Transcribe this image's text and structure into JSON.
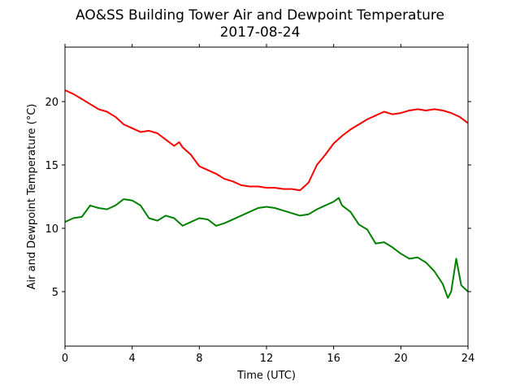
{
  "chart_data": {
    "type": "line",
    "title": "AO&SS Building Tower Air and Dewpoint Temperature",
    "subtitle": "2017-08-24",
    "xlabel": "Time (UTC)",
    "ylabel": "Air and Dewpoint Temperature (°C)",
    "xlim": [
      0,
      24
    ],
    "ylim": [
      0.7,
      24.3
    ],
    "x_ticks": [
      0,
      4,
      8,
      12,
      16,
      20,
      24
    ],
    "y_ticks": [
      5,
      10,
      15,
      20
    ],
    "grid": false,
    "series": [
      {
        "color": "#ff0000",
        "x": [
          0,
          0.5,
          1,
          1.5,
          2,
          2.5,
          3,
          3.5,
          4,
          4.5,
          5,
          5.5,
          6,
          6.5,
          6.8,
          7,
          7.5,
          8,
          8.5,
          9,
          9.5,
          10,
          10.5,
          11,
          11.5,
          12,
          12.5,
          13,
          13.5,
          14,
          14.5,
          15,
          15.5,
          16,
          16.5,
          17,
          17.5,
          18,
          18.5,
          19,
          19.5,
          20,
          20.5,
          21,
          21.5,
          22,
          22.5,
          23,
          23.5,
          24
        ],
        "y": [
          20.9,
          20.6,
          20.2,
          19.8,
          19.4,
          19.2,
          18.8,
          18.2,
          17.9,
          17.6,
          17.7,
          17.5,
          17.0,
          16.5,
          16.8,
          16.4,
          15.8,
          14.9,
          14.6,
          14.3,
          13.9,
          13.7,
          13.4,
          13.3,
          13.3,
          13.2,
          13.2,
          13.1,
          13.1,
          13.0,
          13.6,
          15.0,
          15.8,
          16.7,
          17.3,
          17.8,
          18.2,
          18.6,
          18.9,
          19.2,
          19.0,
          19.1,
          19.3,
          19.4,
          19.3,
          19.4,
          19.3,
          19.1,
          18.8,
          18.3
        ]
      },
      {
        "color": "#008000",
        "x": [
          0,
          0.5,
          1,
          1.5,
          2,
          2.5,
          3,
          3.5,
          4,
          4.5,
          5,
          5.5,
          6,
          6.5,
          7,
          7.5,
          8,
          8.5,
          9,
          9.5,
          10,
          10.5,
          11,
          11.5,
          12,
          12.5,
          13,
          13.5,
          14,
          14.5,
          15,
          15.5,
          16,
          16.3,
          16.5,
          17,
          17.5,
          18,
          18.5,
          19,
          19.5,
          20,
          20.5,
          21,
          21.5,
          22,
          22.5,
          22.8,
          23,
          23.3,
          23.6,
          24
        ],
        "y": [
          10.5,
          10.8,
          10.9,
          11.8,
          11.6,
          11.5,
          11.8,
          12.3,
          12.2,
          11.8,
          10.8,
          10.6,
          11.0,
          10.8,
          10.2,
          10.5,
          10.8,
          10.7,
          10.2,
          10.4,
          10.7,
          11.0,
          11.3,
          11.6,
          11.7,
          11.6,
          11.4,
          11.2,
          11.0,
          11.1,
          11.5,
          11.8,
          12.1,
          12.4,
          11.8,
          11.3,
          10.3,
          9.9,
          8.8,
          8.9,
          8.5,
          8.0,
          7.6,
          7.7,
          7.3,
          6.6,
          5.6,
          4.5,
          5.0,
          7.6,
          5.5,
          5.0
        ]
      }
    ]
  }
}
